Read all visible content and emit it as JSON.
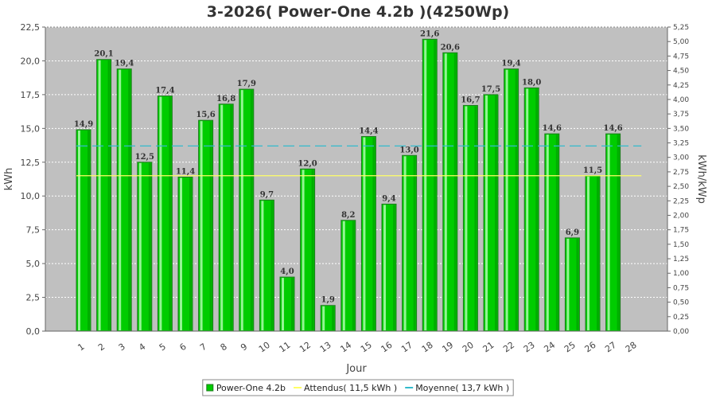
{
  "chart_data": {
    "type": "bar",
    "title": "3-2026( Power-One 4.2b )(4250Wp)",
    "xlabel": "Jour",
    "ylabel": "kWh",
    "y2label": "kWh/kWp",
    "ylim": [
      0,
      22.5
    ],
    "y2lim": [
      0,
      5.25
    ],
    "yticks": [
      "0,0",
      "2,5",
      "5,0",
      "7,5",
      "10,0",
      "12,5",
      "15,0",
      "17,5",
      "20,0",
      "22,5"
    ],
    "y2ticks": [
      "0,00",
      "0,25",
      "0,50",
      "0,75",
      "1,00",
      "1,25",
      "1,50",
      "1,75",
      "2,00",
      "2,25",
      "2,50",
      "2,75",
      "3,00",
      "3,25",
      "3,50",
      "3,75",
      "4,00",
      "4,25",
      "4,50",
      "4,75",
      "5,00",
      "5,25"
    ],
    "categories": [
      "1",
      "2",
      "3",
      "4",
      "5",
      "6",
      "7",
      "8",
      "9",
      "10",
      "11",
      "12",
      "13",
      "14",
      "15",
      "16",
      "17",
      "18",
      "19",
      "20",
      "21",
      "22",
      "23",
      "24",
      "25",
      "26",
      "27",
      "28"
    ],
    "series": [
      {
        "name": "Power-One 4.2b",
        "values": [
          14.9,
          20.1,
          19.4,
          12.5,
          17.4,
          11.4,
          15.6,
          16.8,
          17.9,
          9.7,
          4.0,
          12.0,
          1.9,
          8.2,
          14.4,
          9.4,
          13.0,
          21.6,
          20.6,
          16.7,
          17.5,
          19.4,
          18.0,
          14.6,
          6.9,
          11.5,
          14.6,
          null
        ],
        "labels": [
          "14,9",
          "20,1",
          "19,4",
          "12,5",
          "17,4",
          "11,4",
          "15,6",
          "16,8",
          "17,9",
          "9,7",
          "4,0",
          "12,0",
          "1,9",
          "8,2",
          "14,4",
          "9,4",
          "13,0",
          "21,6",
          "20,6",
          "16,7",
          "17,5",
          "19,4",
          "18,0",
          "14,6",
          "6,9",
          "11,5",
          "14,6",
          ""
        ],
        "color": "#00cc00"
      }
    ],
    "lines": [
      {
        "name": "Attendus( 11,5 kWh )",
        "value": 11.5,
        "color": "#ffff66",
        "style": "solid"
      },
      {
        "name": "Moyenne( 13,7 kWh )",
        "value": 13.7,
        "color": "#33bbcc",
        "style": "dashed"
      }
    ],
    "grid": true,
    "legend": "bottom-center",
    "plot_background": "#c0c0c0"
  }
}
